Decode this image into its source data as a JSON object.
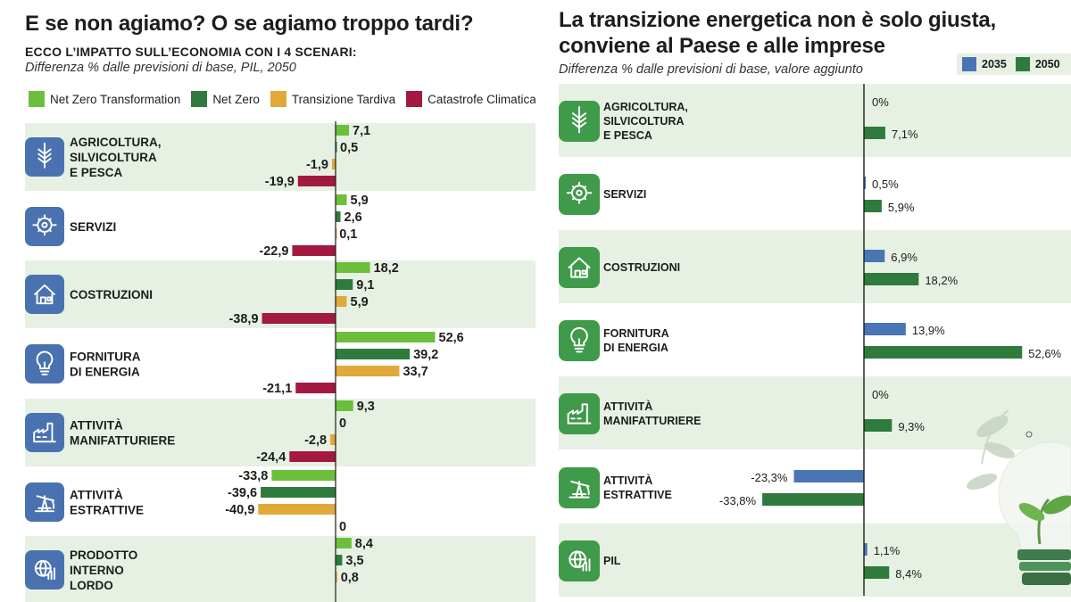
{
  "left": {
    "title": "E se non agiamo? O se agiamo troppo tardi?",
    "subtitle": "ECCO L’IMPATTO SULL’ECONOMIA CON I 4 SCENARI:",
    "note": "Differenza % dalle previsioni di base, PIL, 2050",
    "legend": [
      {
        "label": "Net Zero Transformation",
        "color": "#6cbf3b"
      },
      {
        "label": "Net Zero",
        "color": "#2f7a3d"
      },
      {
        "label": "Transizione Tardiva",
        "color": "#e0a93a"
      },
      {
        "label": "Catastrofe Climatica",
        "color": "#a3193f"
      }
    ]
  },
  "right": {
    "title_line1": "La transizione energetica non è solo giusta,",
    "title_line2": "conviene al Paese e alle imprese",
    "note": "Differenza % dalle previsioni di base, valore aggiunto",
    "legend": [
      {
        "label": "2035",
        "color": "#4a75b5"
      },
      {
        "label": "2050",
        "color": "#2f7a3d"
      }
    ]
  },
  "chart_data": [
    {
      "type": "bar",
      "orientation": "horizontal",
      "title": "E se non agiamo? O se agiamo troppo tardi?",
      "subtitle": "ECCO L’IMPATTO SULL’ECONOMIA CON I 4 SCENARI:",
      "note": "Differenza % dalle previsioni di base, PIL, 2050",
      "categories": [
        "AGRICOLTURA,|SILVICOLTURA|E PESCA",
        "SERVIZI",
        "COSTRUZIONI",
        "FORNITURA|DI ENERGIA",
        "ATTIVITÀ|MANIFATTURIERE",
        "ATTIVITÀ|ESTRATTIVE",
        "PRODOTTO|INTERNO|LORDO"
      ],
      "series": [
        {
          "name": "Net Zero Transformation",
          "color": "#6cbf3b",
          "values": [
            7.1,
            5.9,
            18.2,
            52.6,
            9.3,
            -33.8,
            8.4
          ],
          "labels": [
            "7,1",
            "5,9",
            "18,2",
            "52,6",
            "9,3",
            "-33,8",
            "8,4"
          ]
        },
        {
          "name": "Net Zero",
          "color": "#2f7a3d",
          "values": [
            0.5,
            2.6,
            9.1,
            39.2,
            0,
            -39.6,
            3.5
          ],
          "labels": [
            "0,5",
            "2,6",
            "9,1",
            "39,2",
            "0",
            "-39,6",
            "3,5"
          ]
        },
        {
          "name": "Transizione Tardiva",
          "color": "#e0a93a",
          "values": [
            -1.9,
            0.1,
            5.9,
            33.7,
            -2.8,
            -40.9,
            0.8
          ],
          "labels": [
            "-1,9",
            "0,1",
            "5,9",
            "33,7",
            "-2,8",
            "-40,9",
            "0,8"
          ]
        },
        {
          "name": "Catastrofe Climatica",
          "color": "#a3193f",
          "values": [
            -19.9,
            -22.9,
            -38.9,
            -21.1,
            -24.4,
            0,
            null
          ],
          "labels": [
            "-19,9",
            "-22,9",
            "-38,9",
            "-21,1",
            "-24,4",
            "0",
            ""
          ]
        }
      ]
    },
    {
      "type": "bar",
      "orientation": "horizontal",
      "title": "La transizione energetica non è solo giusta, conviene al Paese e alle imprese",
      "note": "Differenza % dalle previsioni di base, valore aggiunto",
      "categories": [
        "AGRICOLTURA,|SILVICOLTURA|E PESCA",
        "SERVIZI",
        "COSTRUZIONI",
        "FORNITURA|DI ENERGIA",
        "ATTIVITÀ|MANIFATTURIERE",
        "ATTIVITÀ|ESTRATTIVE",
        "PIL"
      ],
      "series": [
        {
          "name": "2035",
          "color": "#4a75b5",
          "values": [
            0,
            0.5,
            6.9,
            13.9,
            0,
            -23.3,
            1.1
          ],
          "labels": [
            "0%",
            "0,5%",
            "6,9%",
            "13,9%",
            "0%",
            "-23,3%",
            "1,1%"
          ]
        },
        {
          "name": "2050",
          "color": "#2f7a3d",
          "values": [
            7.1,
            5.9,
            18.2,
            52.6,
            9.3,
            -33.8,
            8.4
          ],
          "labels": [
            "7,1%",
            "5,9%",
            "18,2%",
            "52,6%",
            "9,3%",
            "-33,8%",
            "8,4%"
          ]
        }
      ]
    }
  ]
}
